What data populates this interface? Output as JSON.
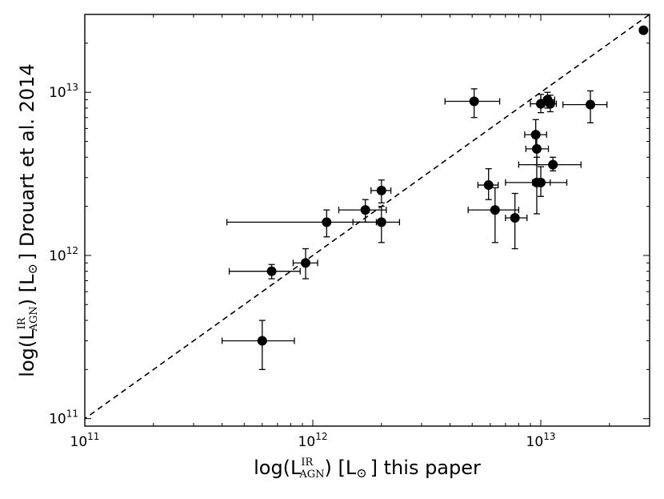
{
  "chart_data": {
    "type": "scatter",
    "x_scale": "log",
    "y_scale": "log",
    "xlim": [
      100000000000.0,
      30000000000000.0
    ],
    "ylim": [
      90000000000.0,
      30000000000000.0
    ],
    "grid": false,
    "xlabel": {
      "prefix": "log(L",
      "sup": "IR",
      "sub": "AGN",
      "mid": ") [L",
      "sun": "⊙",
      "suffix": "] this paper"
    },
    "ylabel": {
      "prefix": "log(L",
      "sup": "IR",
      "sub": "AGN",
      "mid": ") [L",
      "sun": "⊙",
      "suffix": "] Drouart et al. 2014"
    },
    "x_ticks": [
      {
        "base": "10",
        "exp": "11",
        "value": 100000000000.0
      },
      {
        "base": "10",
        "exp": "12",
        "value": 1000000000000.0
      },
      {
        "base": "10",
        "exp": "13",
        "value": 10000000000000.0
      }
    ],
    "y_ticks": [
      {
        "base": "10",
        "exp": "11",
        "value": 100000000000.0
      },
      {
        "base": "10",
        "exp": "12",
        "value": 1000000000000.0
      },
      {
        "base": "10",
        "exp": "13",
        "value": 10000000000000.0
      }
    ],
    "reference_line": {
      "style": "dashed",
      "description": "one-to-one"
    },
    "points": [
      {
        "x": 600000000000.0,
        "y": 300000000000.0,
        "xerr": [
          400000000000.0,
          830000000000.0
        ],
        "yerr": [
          200000000000.0,
          400000000000.0
        ]
      },
      {
        "x": 660000000000.0,
        "y": 800000000000.0,
        "xerr": [
          430000000000.0,
          880000000000.0
        ],
        "yerr": [
          720000000000.0,
          880000000000.0
        ]
      },
      {
        "x": 930000000000.0,
        "y": 900000000000.0,
        "xerr": [
          820000000000.0,
          1050000000000.0
        ],
        "yerr": [
          720000000000.0,
          1100000000000.0
        ]
      },
      {
        "x": 1150000000000.0,
        "y": 1600000000000.0,
        "xerr": [
          420000000000.0,
          1900000000000.0
        ],
        "yerr": [
          1300000000000.0,
          1900000000000.0
        ]
      },
      {
        "x": 1700000000000.0,
        "y": 1900000000000.0,
        "xerr": [
          1300000000000.0,
          2100000000000.0
        ],
        "yerr": [
          1600000000000.0,
          2200000000000.0
        ]
      },
      {
        "x": 2000000000000.0,
        "y": 1600000000000.0,
        "xerr": [
          1500000000000.0,
          2400000000000.0
        ],
        "yerr": [
          1200000000000.0,
          2000000000000.0
        ]
      },
      {
        "x": 2000000000000.0,
        "y": 2500000000000.0,
        "xerr": [
          1800000000000.0,
          2200000000000.0
        ],
        "yerr": [
          2100000000000.0,
          2900000000000.0
        ]
      },
      {
        "x": 5100000000000.0,
        "y": 8800000000000.0,
        "xerr": [
          3800000000000.0,
          6600000000000.0
        ],
        "yerr": [
          7000000000000.0,
          10500000000000.0
        ]
      },
      {
        "x": 5900000000000.0,
        "y": 2700000000000.0,
        "xerr": [
          5300000000000.0,
          6500000000000.0
        ],
        "yerr": [
          2200000000000.0,
          3400000000000.0
        ]
      },
      {
        "x": 6300000000000.0,
        "y": 1900000000000.0,
        "xerr": [
          4800000000000.0,
          8000000000000.0
        ],
        "yerr": [
          1200000000000.0,
          2600000000000.0
        ]
      },
      {
        "x": 7700000000000.0,
        "y": 1700000000000.0,
        "xerr": [
          7000000000000.0,
          8700000000000.0
        ],
        "yerr": [
          1100000000000.0,
          2400000000000.0
        ]
      },
      {
        "x": 9500000000000.0,
        "y": 5500000000000.0,
        "xerr": [
          8500000000000.0,
          10600000000000.0
        ],
        "yerr": [
          4500000000000.0,
          6800000000000.0
        ]
      },
      {
        "x": 9600000000000.0,
        "y": 4500000000000.0,
        "xerr": [
          8600000000000.0,
          10800000000000.0
        ],
        "yerr": [
          3600000000000.0,
          5500000000000.0
        ]
      },
      {
        "x": 9600000000000.0,
        "y": 2800000000000.0,
        "xerr": [
          7000000000000.0,
          13000000000000.0
        ],
        "yerr": [
          1800000000000.0,
          4000000000000.0
        ]
      },
      {
        "x": 10000000000000.0,
        "y": 2800000000000.0,
        "xerr": [
          9200000000000.0,
          11000000000000.0
        ],
        "yerr": [
          2300000000000.0,
          3500000000000.0
        ]
      },
      {
        "x": 10000000000000.0,
        "y": 8500000000000.0,
        "xerr": [
          9000000000000.0,
          11200000000000.0
        ],
        "yerr": [
          7500000000000.0,
          9700000000000.0
        ]
      },
      {
        "x": 10700000000000.0,
        "y": 9000000000000.0,
        "xerr": [
          10000000000000.0,
          11500000000000.0
        ],
        "yerr": [
          8000000000000.0,
          10000000000000.0
        ]
      },
      {
        "x": 11000000000000.0,
        "y": 8500000000000.0,
        "xerr": [
          10400000000000.0,
          11700000000000.0
        ],
        "yerr": [
          7600000000000.0,
          9600000000000.0
        ]
      },
      {
        "x": 11300000000000.0,
        "y": 3600000000000.0,
        "xerr": [
          8000000000000.0,
          15000000000000.0
        ],
        "yerr": [
          3300000000000.0,
          4000000000000.0
        ]
      },
      {
        "x": 16500000000000.0,
        "y": 8400000000000.0,
        "xerr": [
          12500000000000.0,
          19500000000000.0
        ],
        "yerr": [
          6500000000000.0,
          10200000000000.0
        ]
      },
      {
        "x": 28200000000000.0,
        "y": 24000000000000.0,
        "xerr": [
          27500000000000.0,
          29000000000000.0
        ],
        "yerr": [
          23000000000000.0,
          25000000000000.0
        ]
      }
    ]
  }
}
